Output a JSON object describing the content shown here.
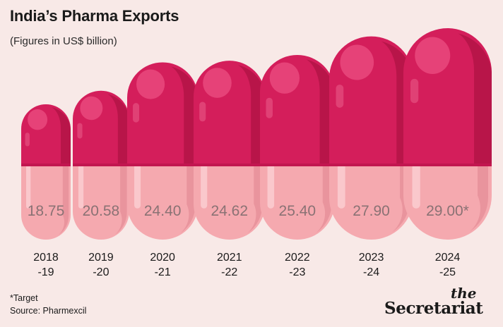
{
  "chart_data": {
    "type": "bar",
    "title": "India’s Pharma Exports",
    "subtitle": "(Figures in US$ billion)",
    "categories": [
      [
        "2018",
        "-19"
      ],
      [
        "2019",
        "-20"
      ],
      [
        "2020",
        "-21"
      ],
      [
        "2021",
        "-22"
      ],
      [
        "2022",
        "-23"
      ],
      [
        "2023",
        "-24"
      ],
      [
        "2024",
        "-25"
      ]
    ],
    "values": [
      18.75,
      20.58,
      24.4,
      24.62,
      25.4,
      27.9,
      29.0
    ],
    "value_labels": [
      "18.75",
      "20.58",
      "24.40",
      "24.62",
      "25.40",
      "27.90",
      "29.00*"
    ],
    "marker": "capsule pill",
    "colors": {
      "cap_top": "#d41e5b",
      "cap_shade": "#b31447",
      "body": "#f5a9af",
      "body_shade": "#e48c95",
      "label": "#8a7274"
    }
  },
  "footnote": {
    "target_note": "*Target",
    "source": "Source: Pharmexcil"
  },
  "brand": {
    "the": "the",
    "name": "Secretariat"
  }
}
